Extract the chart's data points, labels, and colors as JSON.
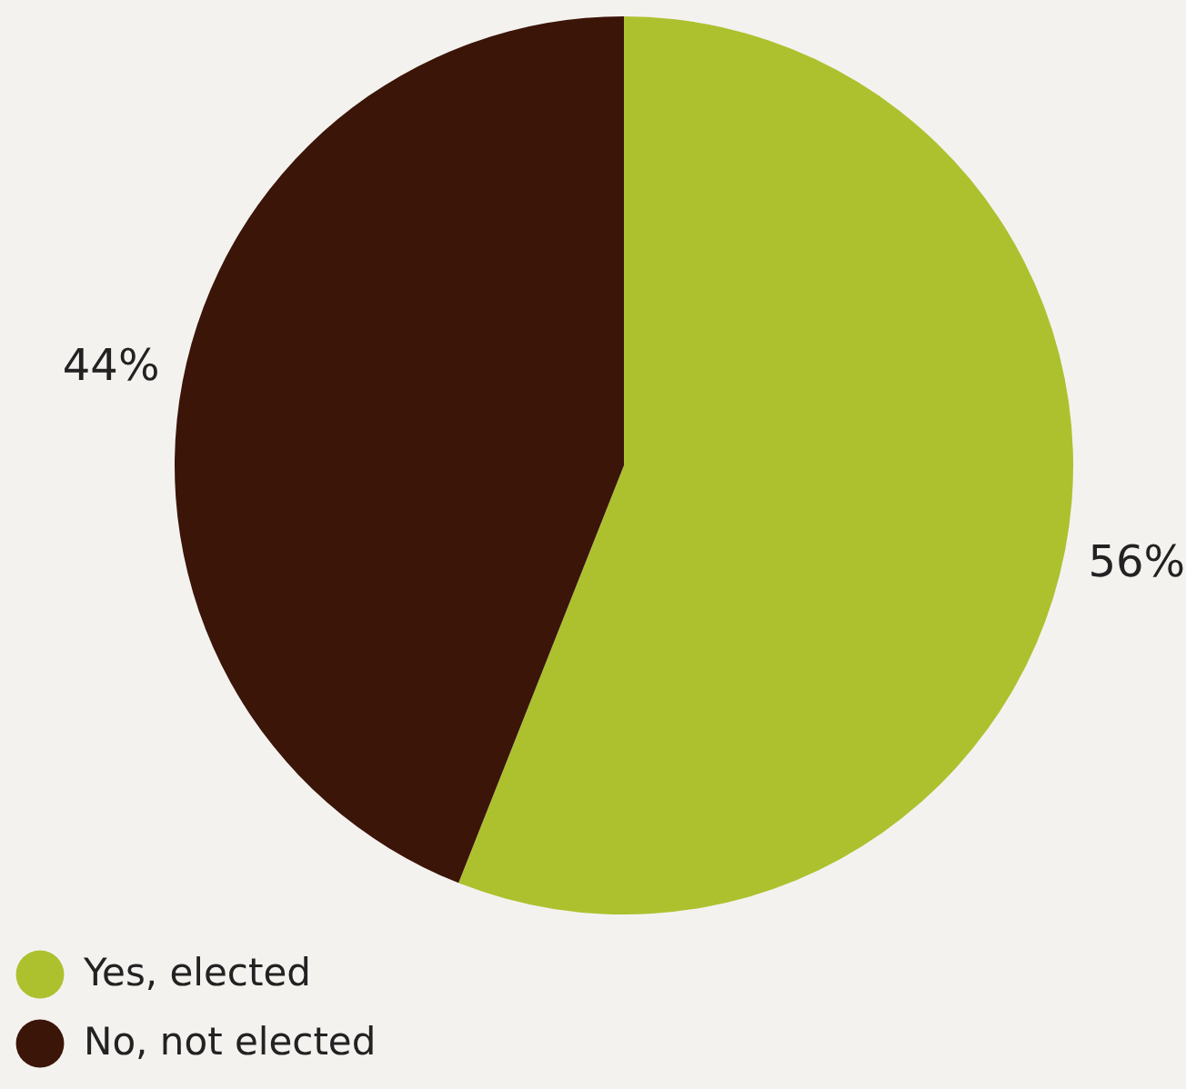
{
  "chart_data": {
    "type": "pie",
    "categories": [
      "Yes, elected",
      "No, not elected"
    ],
    "values": [
      56,
      44
    ],
    "colors": [
      "#adc12f",
      "#3b1508"
    ],
    "value_labels": [
      "56%",
      "44%"
    ],
    "legend": "bottom left"
  }
}
